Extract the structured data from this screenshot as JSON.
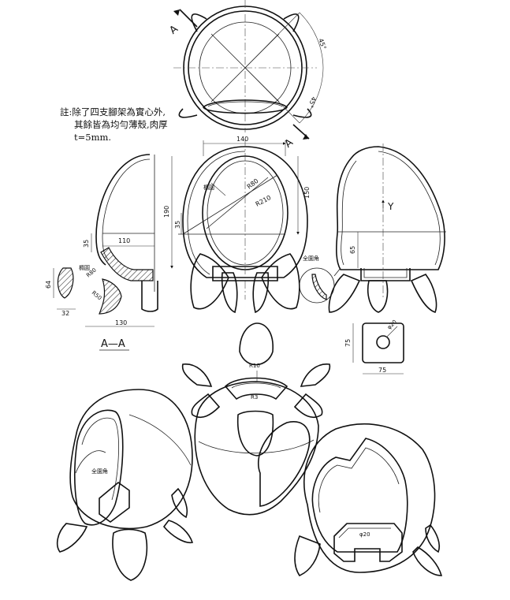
{
  "note": {
    "line1": "註:除了四支腳架為實心外,",
    "line2": "其餘皆為均勻薄殼,肉厚",
    "line3": "t=5mm."
  },
  "section_markers": {
    "a_top": "A",
    "a_bottom": "A"
  },
  "angles": {
    "upper": "45°",
    "lower": "45°"
  },
  "front_dims": {
    "width_140": "140",
    "height_150": "150",
    "height_190": "190",
    "offset_35": "35",
    "r80": "R80",
    "r210": "R210",
    "ellipse": "橢圓"
  },
  "section_dims": {
    "d35": "35",
    "d110": "110",
    "ellipse": "橢圓",
    "r80": "R80",
    "r50": "R50",
    "d64": "64",
    "d32": "32",
    "d130": "130",
    "title": "A—A"
  },
  "side_dims": {
    "axis_y": "Y",
    "d65": "65",
    "full_round": "全園角"
  },
  "foot_dims": {
    "d75_h": "75",
    "d75_v": "75",
    "phi20": "φ20"
  },
  "iso_back": {
    "r10": "R10",
    "r3": "R3"
  },
  "iso_left": {
    "full_round": "全園角"
  },
  "iso_right": {
    "phi20": "φ20"
  }
}
